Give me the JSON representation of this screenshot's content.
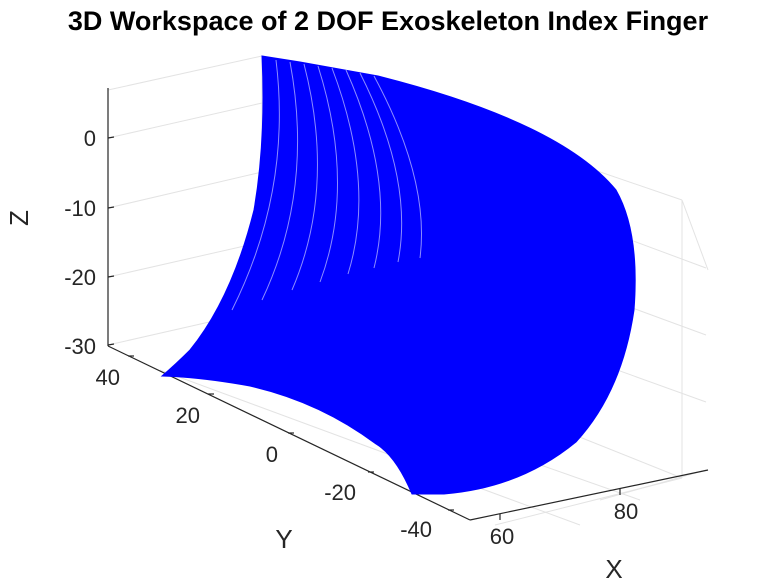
{
  "chart_data": {
    "type": "surface3d",
    "title": "3D Workspace of 2 DOF Exoskeleton Index Finger",
    "xlabel": "X",
    "ylabel": "Y",
    "zlabel": "Z",
    "x_ticks": [
      "60",
      "80"
    ],
    "y_ticks": [
      "40",
      "20",
      "0",
      "-20",
      "-40"
    ],
    "z_ticks": [
      "0",
      "-10",
      "-20",
      "-30"
    ],
    "xlim": [
      55,
      95
    ],
    "ylim": [
      -45,
      45
    ],
    "zlim": [
      -32,
      8
    ],
    "grid": true,
    "surface_color": "#0000ff"
  }
}
